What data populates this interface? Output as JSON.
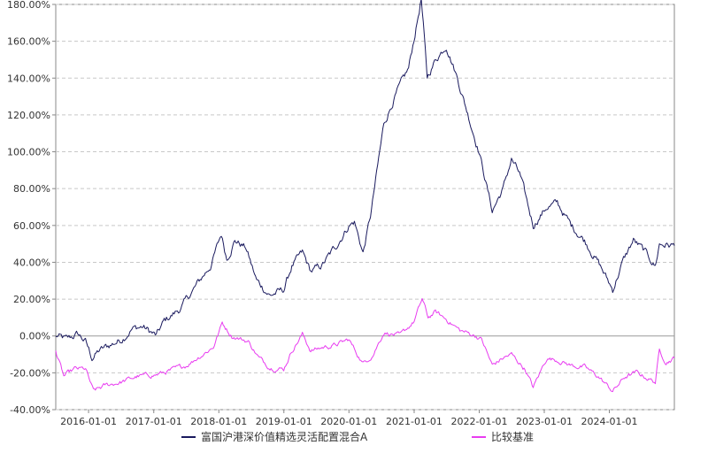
{
  "chart_data": {
    "type": "line",
    "title": "",
    "xlabel": "",
    "ylabel": "",
    "x_range": [
      "2015-07-01",
      "2024-12-31"
    ],
    "ylim": [
      -40,
      180
    ],
    "y_unit": "%",
    "grid": {
      "horizontal": true,
      "vertical": false,
      "style": "dashed"
    },
    "legend_position": "bottom-center",
    "y_ticks": [
      {
        "value": 180,
        "label": "180.00%"
      },
      {
        "value": 160,
        "label": "160.00%"
      },
      {
        "value": 140,
        "label": "140.00%"
      },
      {
        "value": 120,
        "label": "120.00%"
      },
      {
        "value": 100,
        "label": "100.00%"
      },
      {
        "value": 80,
        "label": "80.00%"
      },
      {
        "value": 60,
        "label": "60.00%"
      },
      {
        "value": 40,
        "label": "40.00%"
      },
      {
        "value": 20,
        "label": "20.00%"
      },
      {
        "value": 0,
        "label": "0.00%"
      },
      {
        "value": -20,
        "label": "-20.00%"
      },
      {
        "value": -40,
        "label": "-40.00%"
      }
    ],
    "x_ticks": [
      {
        "date": "2016-01-01",
        "label": "2016-01-01"
      },
      {
        "date": "2017-01-01",
        "label": "2017-01-01"
      },
      {
        "date": "2018-01-01",
        "label": "2018-01-01"
      },
      {
        "date": "2019-01-01",
        "label": "2019-01-01"
      },
      {
        "date": "2020-01-01",
        "label": "2020-01-01"
      },
      {
        "date": "2021-01-01",
        "label": "2021-01-01"
      },
      {
        "date": "2022-01-01",
        "label": "2022-01-01"
      },
      {
        "date": "2023-01-01",
        "label": "2023-01-01"
      },
      {
        "date": "2024-01-01",
        "label": "2024-01-01"
      }
    ],
    "series": [
      {
        "name": "富国沪港深价值精选灵活配置混合A",
        "color": "#1a1a5e",
        "points": [
          [
            "2015-07-01",
            0
          ],
          [
            "2015-09-01",
            -2
          ],
          [
            "2015-11-01",
            1
          ],
          [
            "2015-12-15",
            -3
          ],
          [
            "2016-01-20",
            -12
          ],
          [
            "2016-03-01",
            -8
          ],
          [
            "2016-05-01",
            -5
          ],
          [
            "2016-07-01",
            -2
          ],
          [
            "2016-09-01",
            4
          ],
          [
            "2016-11-01",
            5
          ],
          [
            "2017-01-15",
            0
          ],
          [
            "2017-03-01",
            8
          ],
          [
            "2017-06-01",
            15
          ],
          [
            "2017-09-01",
            28
          ],
          [
            "2017-11-15",
            38
          ],
          [
            "2018-01-15",
            55
          ],
          [
            "2018-02-15",
            42
          ],
          [
            "2018-04-01",
            52
          ],
          [
            "2018-06-01",
            48
          ],
          [
            "2018-08-01",
            30
          ],
          [
            "2018-10-15",
            22
          ],
          [
            "2018-12-31",
            25
          ],
          [
            "2019-02-15",
            38
          ],
          [
            "2019-04-15",
            45
          ],
          [
            "2019-06-01",
            35
          ],
          [
            "2019-08-01",
            38
          ],
          [
            "2019-10-15",
            48
          ],
          [
            "2019-12-31",
            60
          ],
          [
            "2020-02-01",
            62
          ],
          [
            "2020-03-20",
            45
          ],
          [
            "2020-05-01",
            65
          ],
          [
            "2020-07-15",
            115
          ],
          [
            "2020-09-15",
            130
          ],
          [
            "2020-12-01",
            145
          ],
          [
            "2021-02-10",
            183
          ],
          [
            "2021-03-15",
            140
          ],
          [
            "2021-05-01",
            150
          ],
          [
            "2021-07-01",
            158
          ],
          [
            "2021-09-01",
            140
          ],
          [
            "2021-11-15",
            115
          ],
          [
            "2022-01-01",
            100
          ],
          [
            "2022-03-15",
            68
          ],
          [
            "2022-05-15",
            80
          ],
          [
            "2022-07-01",
            96
          ],
          [
            "2022-08-15",
            88
          ],
          [
            "2022-10-31",
            60
          ],
          [
            "2023-01-15",
            70
          ],
          [
            "2023-03-15",
            72
          ],
          [
            "2023-06-01",
            60
          ],
          [
            "2023-08-15",
            52
          ],
          [
            "2023-10-31",
            40
          ],
          [
            "2024-01-20",
            25
          ],
          [
            "2024-03-15",
            40
          ],
          [
            "2024-05-15",
            52
          ],
          [
            "2024-07-15",
            46
          ],
          [
            "2024-09-15",
            38
          ],
          [
            "2024-10-08",
            50
          ],
          [
            "2024-12-31",
            49
          ]
        ]
      },
      {
        "name": "比较基准",
        "color": "#e83cf0",
        "points": [
          [
            "2015-07-01",
            -8
          ],
          [
            "2015-08-15",
            -22
          ],
          [
            "2015-10-15",
            -18
          ],
          [
            "2015-12-15",
            -18
          ],
          [
            "2016-01-28",
            -30
          ],
          [
            "2016-04-01",
            -27
          ],
          [
            "2016-07-01",
            -25
          ],
          [
            "2016-10-01",
            -22
          ],
          [
            "2017-01-15",
            -21
          ],
          [
            "2017-04-01",
            -19
          ],
          [
            "2017-07-01",
            -16
          ],
          [
            "2017-10-01",
            -10
          ],
          [
            "2017-12-01",
            -6
          ],
          [
            "2018-01-20",
            7
          ],
          [
            "2018-03-15",
            0
          ],
          [
            "2018-06-15",
            -3
          ],
          [
            "2018-08-15",
            -12
          ],
          [
            "2018-10-15",
            -17
          ],
          [
            "2018-12-31",
            -18
          ],
          [
            "2019-02-15",
            -8
          ],
          [
            "2019-04-15",
            1
          ],
          [
            "2019-06-01",
            -8
          ],
          [
            "2019-08-15",
            -6
          ],
          [
            "2019-10-15",
            -5
          ],
          [
            "2019-12-31",
            -2
          ],
          [
            "2020-03-20",
            -15
          ],
          [
            "2020-05-15",
            -10
          ],
          [
            "2020-07-15",
            2
          ],
          [
            "2020-10-15",
            0
          ],
          [
            "2021-01-01",
            8
          ],
          [
            "2021-02-15",
            20
          ],
          [
            "2021-03-20",
            10
          ],
          [
            "2021-05-01",
            13
          ],
          [
            "2021-07-15",
            8
          ],
          [
            "2021-09-15",
            3
          ],
          [
            "2021-12-15",
            0
          ],
          [
            "2022-01-15",
            -2
          ],
          [
            "2022-03-15",
            -16
          ],
          [
            "2022-05-15",
            -12
          ],
          [
            "2022-07-01",
            -10
          ],
          [
            "2022-09-15",
            -18
          ],
          [
            "2022-10-31",
            -28
          ],
          [
            "2023-01-15",
            -12
          ],
          [
            "2023-03-15",
            -13
          ],
          [
            "2023-06-01",
            -16
          ],
          [
            "2023-08-15",
            -17
          ],
          [
            "2023-10-31",
            -22
          ],
          [
            "2024-01-20",
            -30
          ],
          [
            "2024-04-01",
            -22
          ],
          [
            "2024-06-01",
            -20
          ],
          [
            "2024-07-15",
            -22
          ],
          [
            "2024-09-15",
            -25
          ],
          [
            "2024-10-08",
            -8
          ],
          [
            "2024-11-15",
            -14
          ],
          [
            "2024-12-31",
            -12
          ]
        ]
      }
    ]
  }
}
